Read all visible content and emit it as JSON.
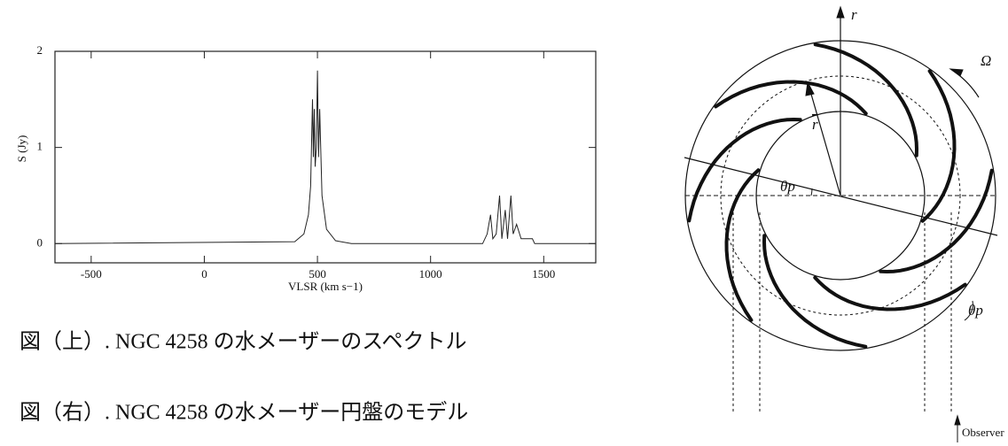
{
  "chart_data": {
    "type": "line",
    "x_label": "VLSR (km s−1)",
    "y_label": "S (Jy)",
    "x": [
      -660,
      400,
      440,
      460,
      470,
      478,
      482,
      486,
      490,
      495,
      500,
      505,
      510,
      520,
      540,
      580,
      650,
      1230,
      1250,
      1265,
      1275,
      1290,
      1305,
      1315,
      1330,
      1340,
      1355,
      1365,
      1380,
      1400,
      1450,
      1460,
      1730
    ],
    "values": [
      0,
      0.02,
      0.1,
      0.3,
      0.6,
      1.5,
      0.9,
      1.4,
      0.8,
      1.0,
      1.8,
      0.9,
      1.4,
      0.5,
      0.15,
      0.03,
      0,
      0,
      0.1,
      0.3,
      0.05,
      0.1,
      0.5,
      0.05,
      0.35,
      0.05,
      0.5,
      0.1,
      0.2,
      0.05,
      0.05,
      0,
      0
    ],
    "color": "#222222",
    "xlim": [
      -660,
      1730
    ],
    "ylim": [
      -0.2,
      2
    ],
    "xticks": [
      -500,
      0,
      500,
      1000,
      1500
    ],
    "yticks": [
      0,
      1,
      2
    ]
  },
  "captions": [
    "図（上）. NGC 4258 の水メーザーのスペクトル",
    "図（右）. NGC 4258 の水メーザー円盤のモデル"
  ],
  "diagram": {
    "labels": {
      "r_axis": "r",
      "omega": "Ω",
      "r_mean": "r",
      "theta_1": "θp",
      "theta_2": "θp",
      "observer": "Observer"
    }
  }
}
